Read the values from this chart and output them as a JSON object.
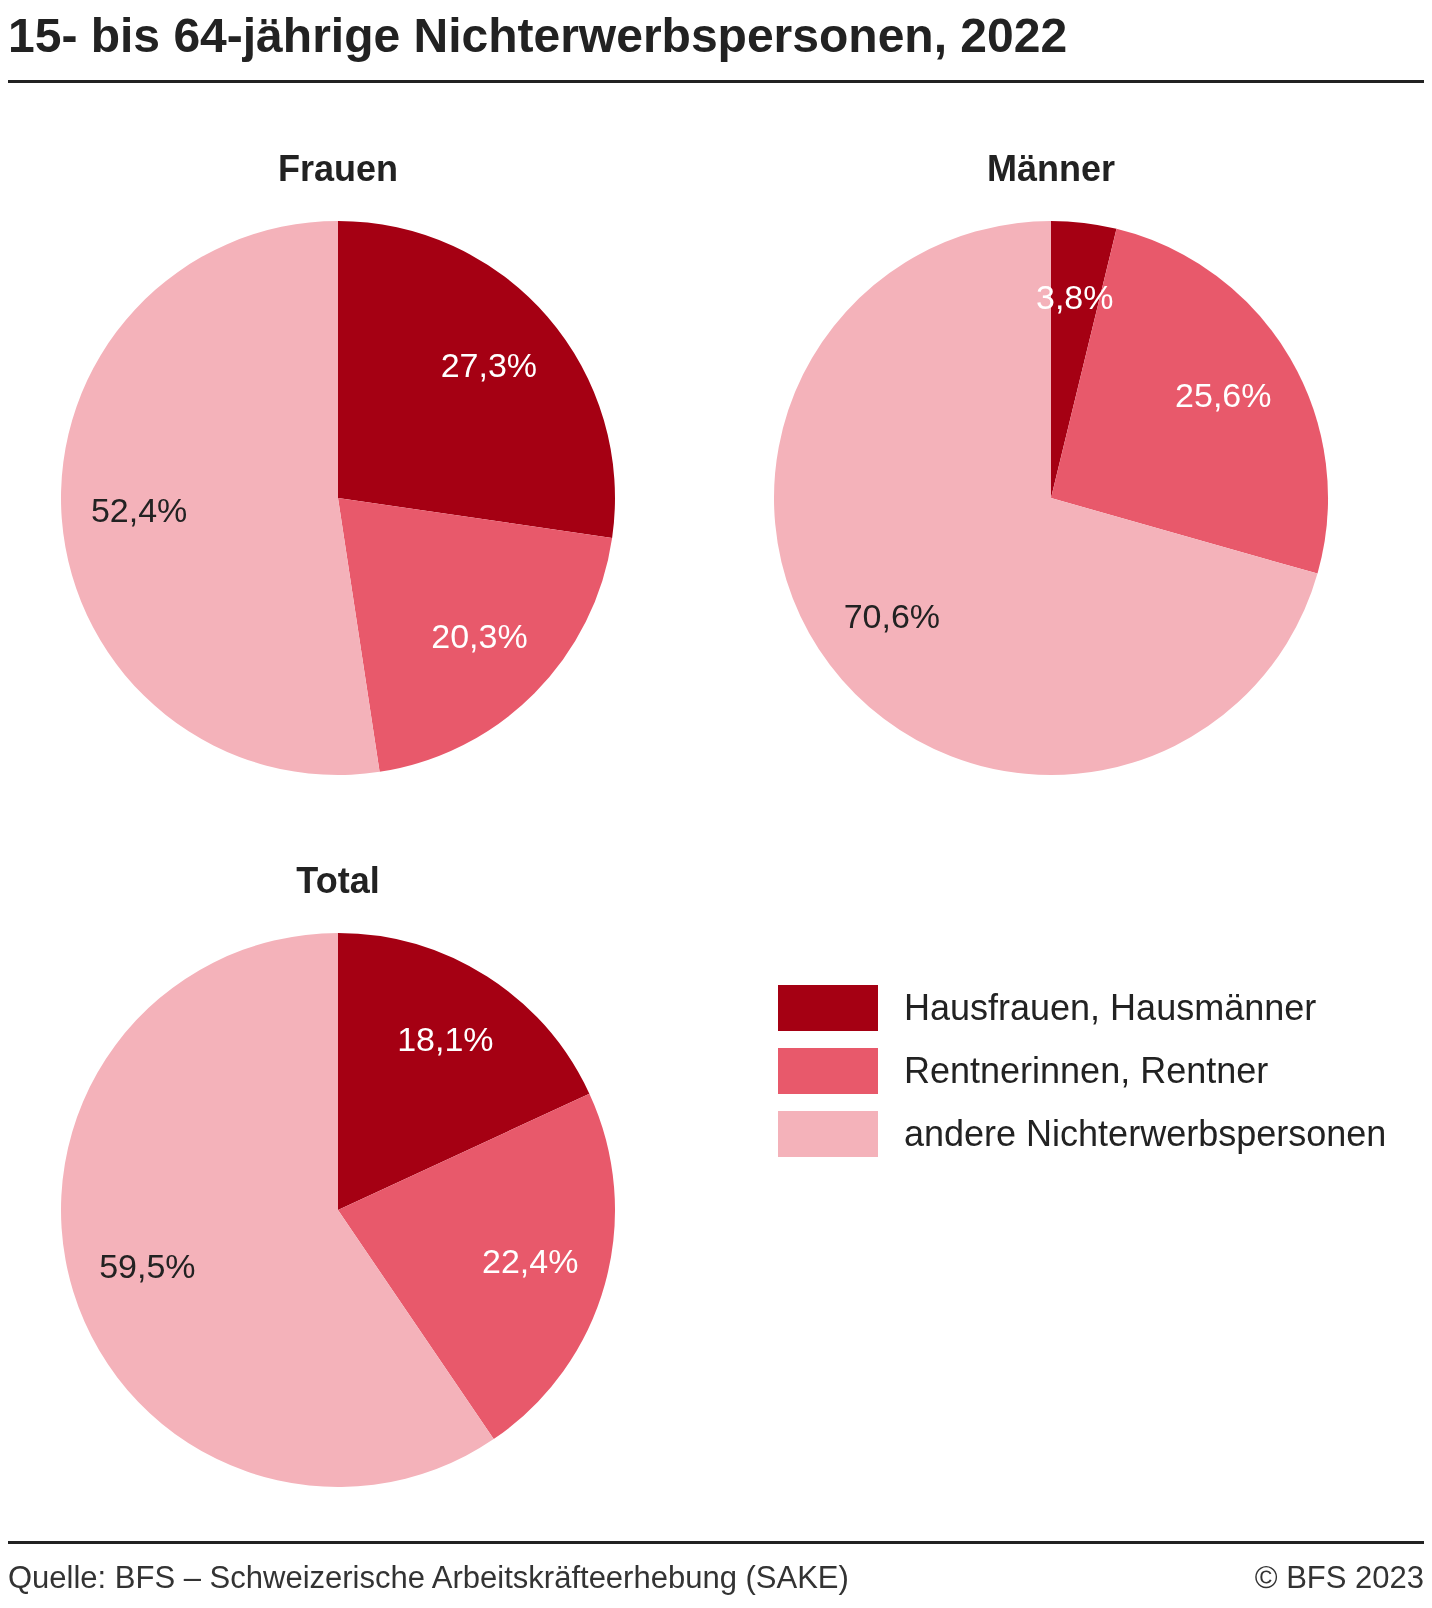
{
  "chart_data": [
    {
      "type": "pie",
      "title": "15- bis 64-jährige Nichterwerbspersonen, 2022",
      "subtitle": "Frauen",
      "categories": [
        null,
        null,
        null
      ],
      "values": [
        27.3,
        20.3,
        52.4
      ],
      "colors": [
        "#a50013",
        "#e8596b",
        "#f4b2ba"
      ],
      "value_labels": [
        "27,3%",
        "20,3%",
        "52,4%"
      ]
    },
    {
      "type": "pie",
      "subtitle": "Männer",
      "categories": [
        null,
        null,
        null
      ],
      "values": [
        3.8,
        25.6,
        70.6
      ],
      "colors": [
        "#a50013",
        "#e8596b",
        "#f4b2ba"
      ],
      "value_labels": [
        "3,8%",
        "25,6%",
        "70,6%"
      ]
    },
    {
      "type": "pie",
      "subtitle": "Total",
      "categories": [
        "Hausfrauen, Hausmänner",
        "Rentnerinnen, Rentner",
        "andere Nichterwerbspersonen"
      ],
      "values": [
        18.1,
        22.4,
        59.5
      ],
      "colors": [
        "#a50013",
        "#e8596b",
        "#f4b2ba"
      ],
      "value_labels": [
        "18,1%",
        "22,4%",
        "59,5%"
      ],
      "legend": "right",
      "annotations": [
        "Quelle: BFS – Schweizerische Arbeitskräfteerhebung (SAKE)",
        "© BFS 2023"
      ]
    }
  ]
}
